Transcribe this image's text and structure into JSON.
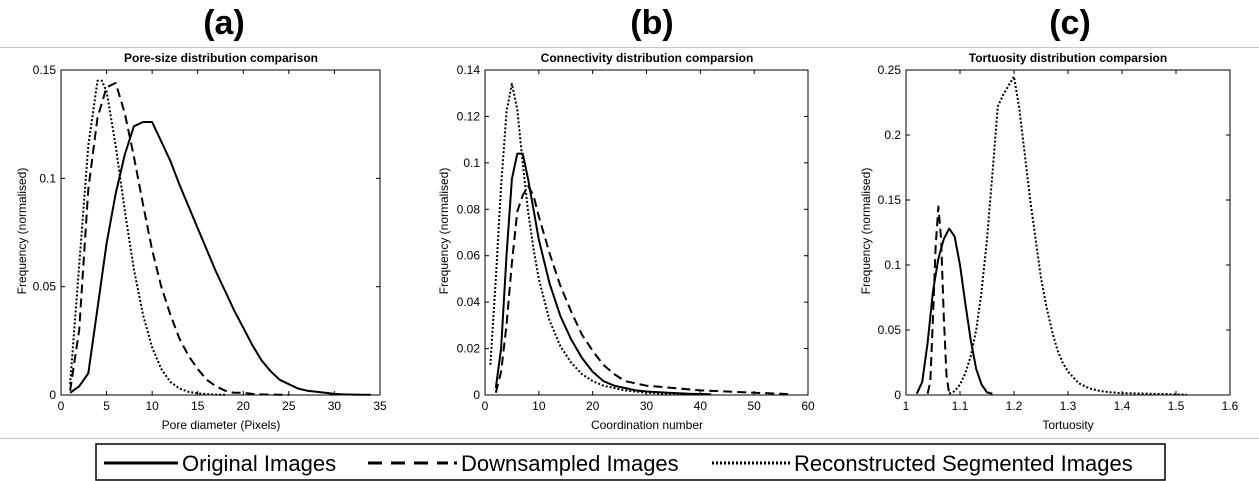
{
  "chart_data": [
    {
      "type": "line",
      "panel_label": "(a)",
      "title": "Pore-size distribution comparison",
      "xlabel": "Pore diameter (Pixels)",
      "ylabel": "Frequency (normalised)",
      "xlim": [
        0,
        35
      ],
      "ylim": [
        0,
        0.15
      ],
      "xticks": [
        "0",
        "5",
        "10",
        "15",
        "20",
        "25",
        "30",
        "35"
      ],
      "yticks": [
        "0",
        "0.05",
        "0.1",
        "0.15"
      ],
      "series": [
        {
          "name": "Original Images",
          "style": "solid",
          "x": [
            1,
            2,
            3,
            4,
            5,
            6,
            7,
            8,
            9,
            10,
            11,
            12,
            13,
            14,
            15,
            16,
            17,
            18,
            19,
            20,
            21,
            22,
            23,
            24,
            25,
            26,
            27,
            28,
            29,
            30,
            31,
            32,
            33,
            34
          ],
          "y": [
            0.001,
            0.004,
            0.01,
            0.04,
            0.07,
            0.093,
            0.111,
            0.124,
            0.126,
            0.126,
            0.117,
            0.108,
            0.097,
            0.087,
            0.077,
            0.067,
            0.057,
            0.048,
            0.039,
            0.031,
            0.023,
            0.016,
            0.011,
            0.007,
            0.005,
            0.003,
            0.002,
            0.0015,
            0.001,
            0.0005,
            0.0003,
            0.0002,
            0.0001,
            0.0001
          ]
        },
        {
          "name": "Downsampled Images",
          "style": "dashed",
          "x": [
            1,
            2,
            3,
            4,
            5,
            6,
            7,
            8,
            9,
            10,
            11,
            12,
            13,
            14,
            15,
            16,
            17,
            18,
            19,
            20,
            21,
            22,
            23,
            24,
            25
          ],
          "y": [
            0.002,
            0.03,
            0.095,
            0.128,
            0.142,
            0.144,
            0.13,
            0.11,
            0.088,
            0.067,
            0.05,
            0.037,
            0.026,
            0.018,
            0.012,
            0.007,
            0.004,
            0.002,
            0.001,
            0.001,
            0.0005,
            0.0003,
            0.0002,
            0.0001,
            0.0001
          ]
        },
        {
          "name": "Reconstructed Segmented Images",
          "style": "dotted",
          "x": [
            1,
            2,
            3,
            4,
            4.5,
            5,
            6,
            7,
            8,
            9,
            10,
            11,
            12,
            13,
            14,
            15,
            16,
            17,
            18
          ],
          "y": [
            0.005,
            0.06,
            0.115,
            0.145,
            0.145,
            0.14,
            0.115,
            0.085,
            0.058,
            0.037,
            0.022,
            0.012,
            0.006,
            0.003,
            0.0015,
            0.0008,
            0.0004,
            0.0002,
            0.0001
          ]
        }
      ]
    },
    {
      "type": "line",
      "panel_label": "(b)",
      "title": "Connectivity distribution comparsion",
      "xlabel": "Coordination number",
      "ylabel": "Frequency (normalised)",
      "xlim": [
        0,
        60
      ],
      "ylim": [
        0,
        0.14
      ],
      "xticks": [
        "0",
        "10",
        "20",
        "30",
        "40",
        "50",
        "60"
      ],
      "yticks": [
        "0",
        "0.02",
        "0.04",
        "0.06",
        "0.08",
        "0.1",
        "0.12",
        "0.14"
      ],
      "series": [
        {
          "name": "Original Images",
          "style": "solid",
          "x": [
            2,
            3,
            4,
            5,
            6,
            7,
            8,
            9,
            10,
            12,
            14,
            16,
            18,
            20,
            22,
            24,
            26,
            28,
            30,
            34,
            38,
            42
          ],
          "y": [
            0.003,
            0.02,
            0.06,
            0.093,
            0.104,
            0.104,
            0.093,
            0.08,
            0.067,
            0.048,
            0.034,
            0.024,
            0.016,
            0.01,
            0.006,
            0.004,
            0.003,
            0.002,
            0.0015,
            0.001,
            0.0005,
            0.0003
          ]
        },
        {
          "name": "Downsampled Images",
          "style": "dashed",
          "x": [
            2,
            3,
            4,
            5,
            6,
            7,
            8,
            9,
            10,
            12,
            14,
            16,
            18,
            20,
            22,
            24,
            26,
            28,
            30,
            35,
            40,
            45,
            50,
            55,
            57
          ],
          "y": [
            0.001,
            0.01,
            0.03,
            0.057,
            0.079,
            0.086,
            0.09,
            0.086,
            0.077,
            0.061,
            0.047,
            0.036,
            0.026,
            0.019,
            0.013,
            0.009,
            0.006,
            0.005,
            0.004,
            0.003,
            0.002,
            0.0015,
            0.001,
            0.0005,
            0.0003
          ]
        },
        {
          "name": "Reconstructed Segmented Images",
          "style": "dotted",
          "x": [
            1,
            2,
            3,
            4,
            5,
            6,
            7,
            8,
            9,
            10,
            12,
            14,
            16,
            18,
            20,
            22,
            24,
            26,
            28,
            30,
            34,
            38
          ],
          "y": [
            0.013,
            0.05,
            0.09,
            0.122,
            0.134,
            0.123,
            0.1,
            0.079,
            0.063,
            0.05,
            0.032,
            0.021,
            0.014,
            0.009,
            0.006,
            0.004,
            0.003,
            0.002,
            0.0015,
            0.001,
            0.0005,
            0.0002
          ]
        }
      ]
    },
    {
      "type": "line",
      "panel_label": "(c)",
      "title": "Tortuosity distribution comparsion",
      "xlabel": "Tortuosity",
      "ylabel": "Frequency (normalised)",
      "xlim": [
        1,
        1.6
      ],
      "ylim": [
        0,
        0.25
      ],
      "xticks": [
        "1",
        "1.1",
        "1.2",
        "1.3",
        "1.4",
        "1.5",
        "1.6"
      ],
      "yticks": [
        "0",
        "0.05",
        "0.1",
        "0.15",
        "0.2",
        "0.25"
      ],
      "series": [
        {
          "name": "Original Images",
          "style": "solid",
          "x": [
            1.02,
            1.03,
            1.04,
            1.05,
            1.06,
            1.07,
            1.08,
            1.09,
            1.1,
            1.11,
            1.12,
            1.13,
            1.14,
            1.15,
            1.16
          ],
          "y": [
            0.001,
            0.01,
            0.04,
            0.08,
            0.105,
            0.12,
            0.128,
            0.122,
            0.1,
            0.07,
            0.042,
            0.02,
            0.008,
            0.002,
            0.001
          ]
        },
        {
          "name": "Downsampled Images",
          "style": "dashed",
          "x": [
            1.04,
            1.045,
            1.05,
            1.055,
            1.06,
            1.065,
            1.07,
            1.075,
            1.08
          ],
          "y": [
            0.001,
            0.01,
            0.06,
            0.115,
            0.145,
            0.12,
            0.06,
            0.015,
            0.001
          ]
        },
        {
          "name": "Reconstructed Segmented Images",
          "style": "dotted",
          "x": [
            1.08,
            1.09,
            1.1,
            1.11,
            1.12,
            1.13,
            1.14,
            1.15,
            1.16,
            1.17,
            1.18,
            1.19,
            1.2,
            1.21,
            1.22,
            1.23,
            1.24,
            1.25,
            1.26,
            1.27,
            1.28,
            1.29,
            1.3,
            1.32,
            1.34,
            1.36,
            1.38,
            1.4,
            1.45,
            1.5,
            1.52
          ],
          "y": [
            0.001,
            0.003,
            0.008,
            0.017,
            0.03,
            0.05,
            0.08,
            0.12,
            0.17,
            0.222,
            0.231,
            0.238,
            0.245,
            0.22,
            0.185,
            0.15,
            0.12,
            0.09,
            0.068,
            0.05,
            0.035,
            0.025,
            0.018,
            0.009,
            0.005,
            0.003,
            0.002,
            0.0015,
            0.001,
            0.0005,
            0.0002
          ]
        }
      ]
    }
  ],
  "legend": {
    "entries": [
      "Original Images",
      "Downsampled Images",
      "Reconstructed Segmented Images"
    ],
    "placement": "bottom-center"
  }
}
